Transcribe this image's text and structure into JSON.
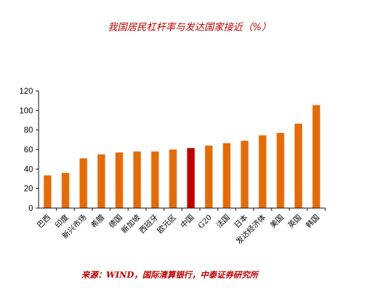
{
  "chart_data": {
    "type": "bar",
    "title": "我国居民杠杆率与发达国家接近（%）",
    "categories": [
      "巴西",
      "印度",
      "新兴市场",
      "希腊",
      "德国",
      "新加坡",
      "西班牙",
      "欧元区",
      "中国",
      "G20",
      "法国",
      "日本",
      "发达经济体",
      "美国",
      "英国",
      "韩国"
    ],
    "values": [
      33.5,
      36,
      51,
      55,
      57,
      58,
      58,
      60,
      61.5,
      64,
      66.5,
      69,
      74.5,
      77,
      86.5,
      105.5
    ],
    "highlight_category": "中国",
    "colors": {
      "bar": "#e36c0a",
      "highlight": "#c00000",
      "axis": "#000000"
    },
    "ylim": [
      0,
      120
    ],
    "yticks": [
      0,
      20,
      40,
      60,
      80,
      100,
      120
    ],
    "grid": false,
    "legend": "none",
    "xlabel": "",
    "ylabel": ""
  },
  "source_note": "来源：WIND，国际清算银行，中泰证券研究所"
}
